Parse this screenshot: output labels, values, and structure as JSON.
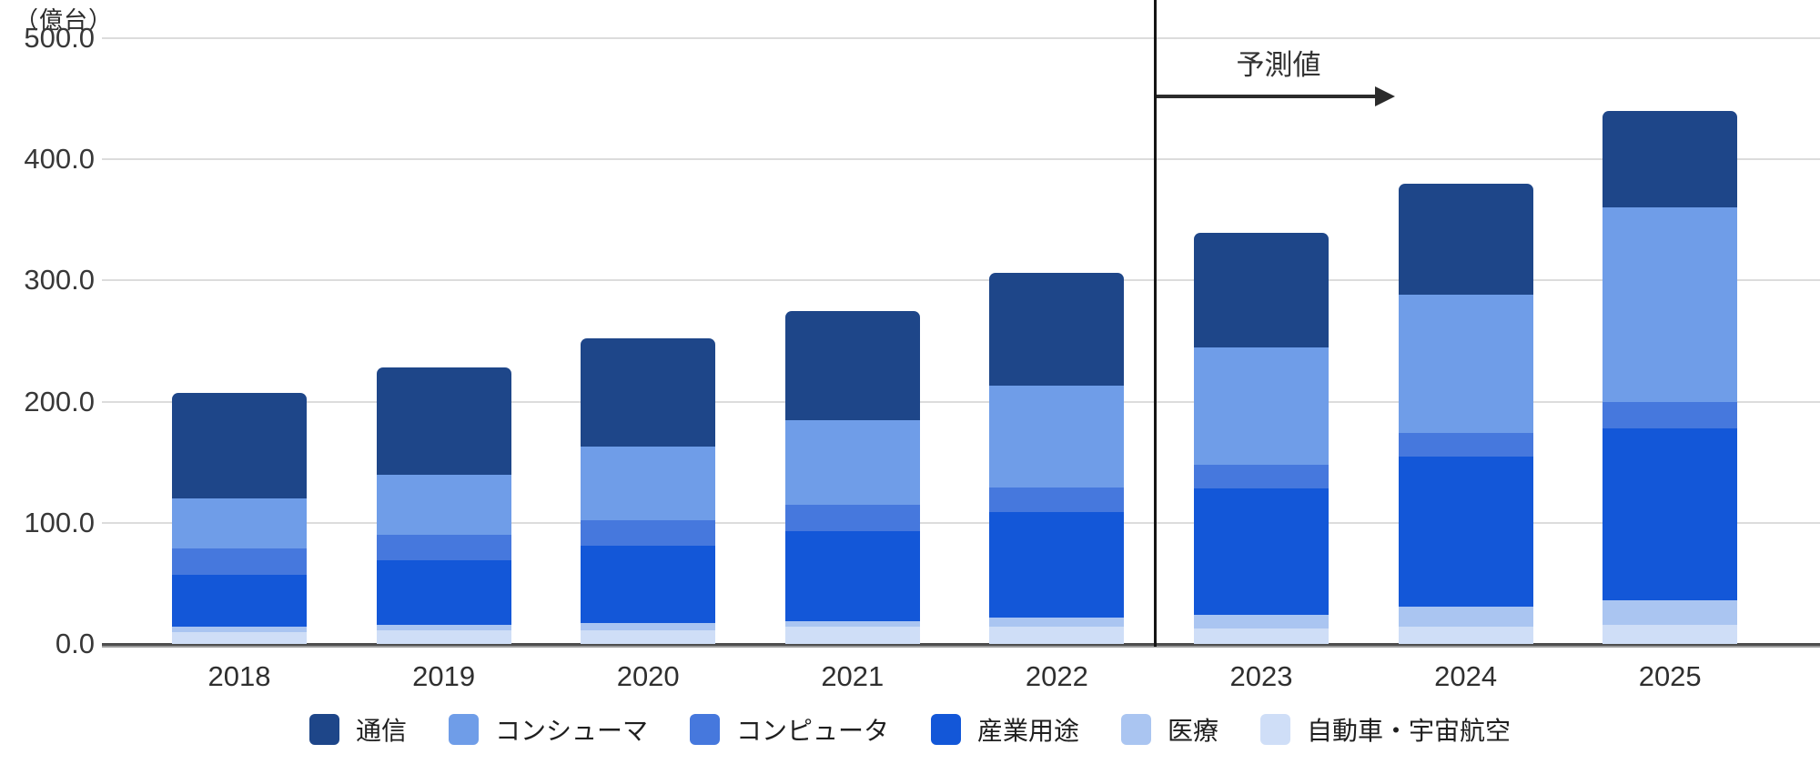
{
  "unit_label": "（億台）",
  "forecast_label": "予測値",
  "y_axis": {
    "ticks": [
      "500.0",
      "400.0",
      "300.0",
      "200.0",
      "100.0",
      "0.0"
    ],
    "max": 500
  },
  "chart_data": {
    "type": "bar",
    "stacked": true,
    "title": "",
    "xlabel": "",
    "ylabel": "（億台）",
    "ylim": [
      0,
      500
    ],
    "grid": true,
    "legend_position": "bottom",
    "categories": [
      "2018",
      "2019",
      "2020",
      "2021",
      "2022",
      "2023",
      "2024",
      "2025"
    ],
    "forecast_from_category": "2023",
    "forecast_annotation": "予測値",
    "stack_order_bottom_to_top": [
      "自動車・宇宙航空",
      "医療",
      "産業用途",
      "コンピュータ",
      "コンシューマ",
      "通信"
    ],
    "series": [
      {
        "name": "通信",
        "key": "communication",
        "color": "#1e4689",
        "values": [
          87,
          88,
          89,
          90,
          93,
          94,
          92,
          80
        ]
      },
      {
        "name": "コンシューマ",
        "key": "consumer",
        "color": "#6f9de8",
        "values": [
          41,
          50,
          61,
          70,
          84,
          97,
          114,
          160
        ]
      },
      {
        "name": "コンピュータ",
        "key": "computer",
        "color": "#4678dd",
        "values": [
          22,
          21,
          21,
          22,
          20,
          20,
          19,
          22
        ]
      },
      {
        "name": "産業用途",
        "key": "industrial",
        "color": "#1357d8",
        "values": [
          43,
          53,
          64,
          74,
          87,
          104,
          124,
          142
        ]
      },
      {
        "name": "医療",
        "key": "medical",
        "color": "#aac5f1",
        "values": [
          4,
          5,
          6,
          5,
          8,
          11,
          17,
          20
        ]
      },
      {
        "name": "自動車・宇宙航空",
        "key": "automotive-aerospace",
        "color": "#cfdef7",
        "values": [
          10,
          11,
          11,
          14,
          14,
          13,
          14,
          16
        ]
      }
    ],
    "totals": [
      207,
      228,
      252,
      275,
      306,
      339,
      380,
      440
    ]
  }
}
